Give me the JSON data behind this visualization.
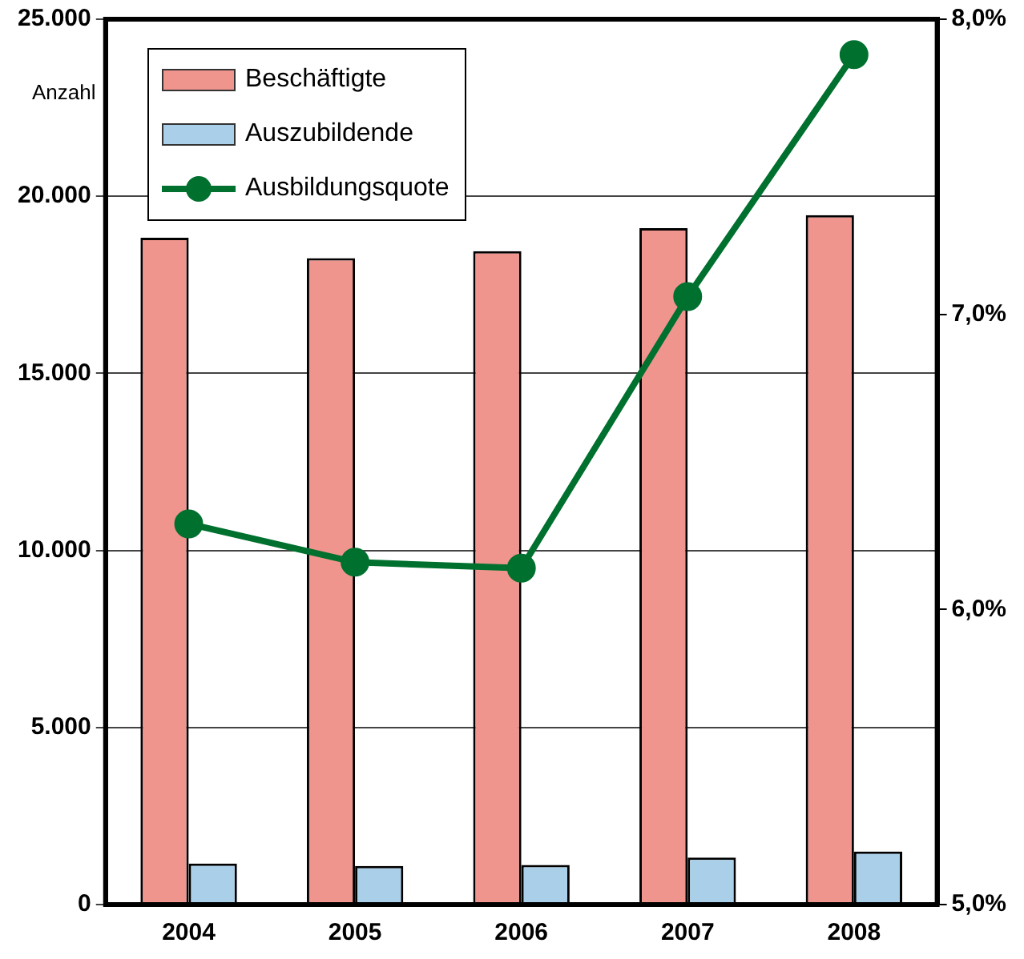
{
  "chart_data": {
    "type": "bar",
    "ylabel": "Anzahl",
    "categories": [
      "2004",
      "2005",
      "2006",
      "2007",
      "2008"
    ],
    "series": [
      {
        "name": "Beschäftigte",
        "color": "#f0948e",
        "values": [
          18830,
          18250,
          18450,
          19100,
          19470
        ]
      },
      {
        "name": "Auszubildende",
        "color": "#a9cfe9",
        "values": [
          1160,
          1090,
          1120,
          1330,
          1500
        ]
      },
      {
        "name": "Ausbildungsquote",
        "type": "line",
        "axis": "y2",
        "color": "#00702f",
        "values": [
          6.29,
          6.16,
          6.14,
          7.06,
          7.88
        ]
      }
    ],
    "ylim": [
      0,
      25000
    ],
    "yticks": [
      {
        "value": 0,
        "label": "0"
      },
      {
        "value": 5000,
        "label": "5.000"
      },
      {
        "value": 10000,
        "label": "10.000"
      },
      {
        "value": 15000,
        "label": "15.000"
      },
      {
        "value": 20000,
        "label": "20.000"
      },
      {
        "value": 25000,
        "label": "25.000"
      }
    ],
    "y2lim": [
      5,
      8
    ],
    "y2ticks": [
      {
        "value": 5,
        "label": "5,0%"
      },
      {
        "value": 6,
        "label": "6,0%"
      },
      {
        "value": 7,
        "label": "7,0%"
      },
      {
        "value": 8,
        "label": "8,0%"
      }
    ],
    "grid": "y",
    "legend": "top left",
    "marker": "circle"
  }
}
